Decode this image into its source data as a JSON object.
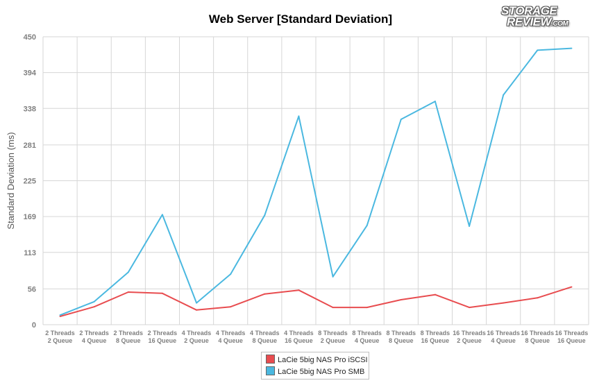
{
  "chart_data": {
    "type": "line",
    "title": "Web Server [Standard Deviation]",
    "ylabel": "Standard Deviation (ms)",
    "xlabel": "",
    "ylim": [
      0,
      450
    ],
    "yticks": [
      "0",
      "56",
      "113",
      "169",
      "225",
      "281",
      "338",
      "394",
      "450"
    ],
    "yticks_values": [
      0,
      56,
      113,
      169,
      225,
      281,
      338,
      394,
      450
    ],
    "grid": true,
    "legend_position": "bottom-center",
    "categories": [
      [
        "2 Threads",
        "2 Queue"
      ],
      [
        "2 Threads",
        "4 Queue"
      ],
      [
        "2 Threads",
        "8 Queue"
      ],
      [
        "2 Threads",
        "16 Queue"
      ],
      [
        "4 Threads",
        "2 Queue"
      ],
      [
        "4 Threads",
        "4 Queue"
      ],
      [
        "4 Threads",
        "8 Queue"
      ],
      [
        "4 Threads",
        "16 Queue"
      ],
      [
        "8 Threads",
        "2 Queue"
      ],
      [
        "8 Threads",
        "4 Queue"
      ],
      [
        "8 Threads",
        "8 Queue"
      ],
      [
        "8 Threads",
        "16 Queue"
      ],
      [
        "16 Threads",
        "2 Queue"
      ],
      [
        "16 Threads",
        "4 Queue"
      ],
      [
        "16 Threads",
        "8 Queue"
      ],
      [
        "16 Threads",
        "16 Queue"
      ]
    ],
    "series": [
      {
        "name": "LaCie 5big NAS Pro iSCSI",
        "color": "#e84c4f",
        "values": [
          13,
          28,
          51,
          49,
          23,
          28,
          48,
          54,
          27,
          27,
          39,
          47,
          27,
          34,
          42,
          59
        ]
      },
      {
        "name": "LaCie 5big NAS Pro SMB",
        "color": "#4ab8e0",
        "values": [
          15,
          36,
          82,
          172,
          34,
          79,
          171,
          326,
          75,
          155,
          321,
          349,
          154,
          359,
          429,
          432
        ]
      }
    ]
  },
  "logo": {
    "line1": "STORAGE",
    "line2": "REVIEW",
    "suffix": ".COM"
  }
}
